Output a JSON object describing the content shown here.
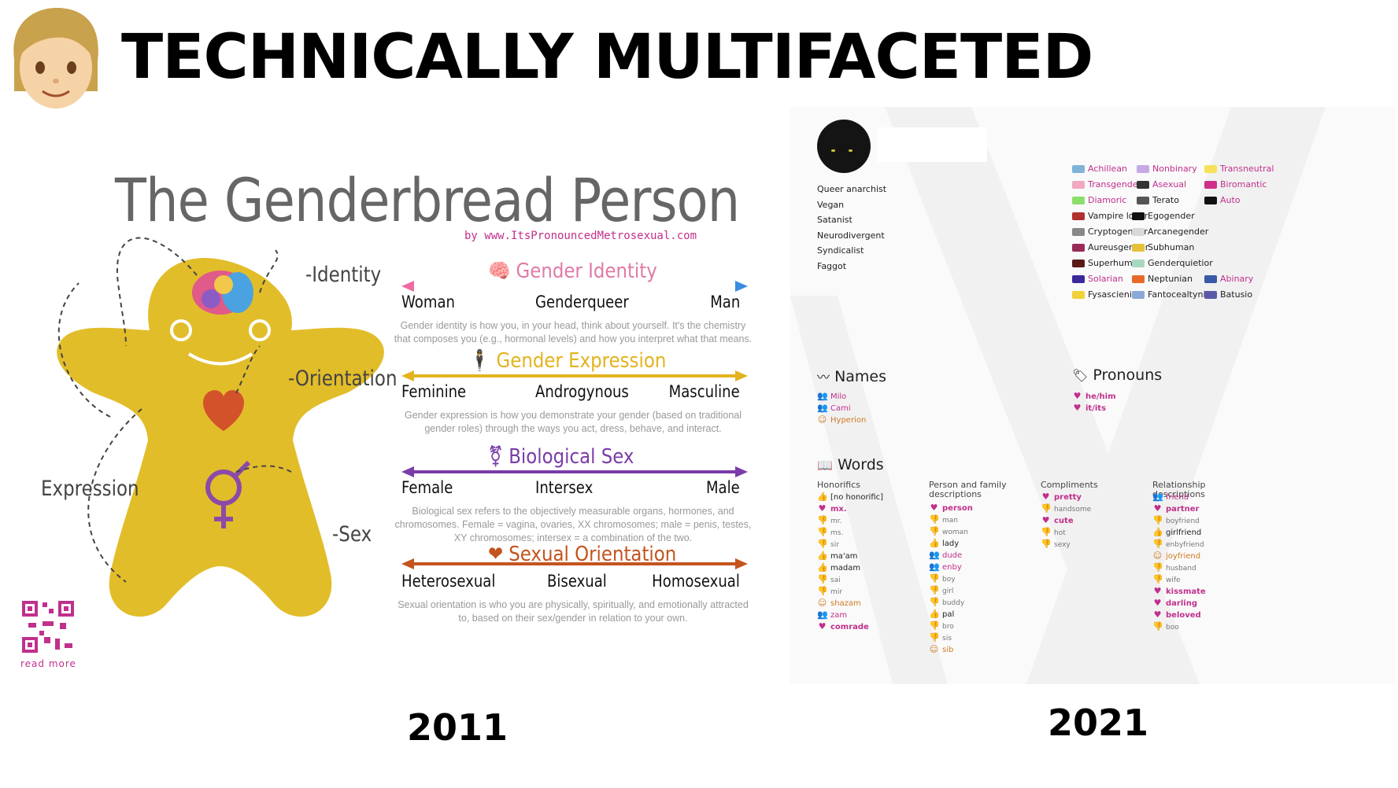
{
  "header": {
    "title": "TECHNICALLY MULTIFACETED",
    "avatar_icon": "person-emoji-icon"
  },
  "years": {
    "left": "2011",
    "right": "2021"
  },
  "genderbread": {
    "title": "The Genderbread Person",
    "byline": "by www.ItsPronouncedMetrosexual.com",
    "labels": {
      "identity": "-Identity",
      "orientation": "-Orientation",
      "expression": "Expression",
      "sex": "-Sex"
    },
    "qr_label": "read more",
    "sections": [
      {
        "title": "Gender Identity",
        "color": "#e07aa8",
        "left": "Woman",
        "middle": "Genderqueer",
        "right": "Man",
        "desc": "Gender identity is how you, in your head, think about yourself.  It's the chemistry that composes you (e.g., hormonal levels) and how you interpret what that means."
      },
      {
        "title": "Gender Expression",
        "color": "#e3b31e",
        "left": "Feminine",
        "middle": "Androgynous",
        "right": "Masculine",
        "desc": "Gender expression is how you demonstrate your gender (based on traditional gender roles) through the ways you act, dress, behave, and interact."
      },
      {
        "title": "Biological Sex",
        "color": "#7a3ca8",
        "left": "Female",
        "middle": "Intersex",
        "right": "Male",
        "desc": "Biological sex refers to the objectively measurable organs, hormones, and chromosomes. Female = vagina, ovaries, XX chromosomes; male = penis, testes, XY chromosomes; intersex = a combination of the two."
      },
      {
        "title": "Sexual Orientation",
        "color": "#c4541e",
        "left": "Heterosexual",
        "middle": "Bisexual",
        "right": "Homosexual",
        "desc": "Sexual orientation is who you are physically, spiritually, and emotionally attracted to, based on their sex/gender in relation to your own."
      }
    ]
  },
  "profile": {
    "bio": [
      "Queer anarchist",
      "Vegan",
      "Satanist",
      "Neurodivergent",
      "Syndicalist",
      "Faggot"
    ],
    "flags": [
      [
        "Achillean",
        "Nonbinary",
        "Transneutral"
      ],
      [
        "Transgender",
        "Asexual",
        "Biromantic"
      ],
      [
        "Diamoric",
        "Terato",
        "Auto"
      ],
      [
        "Vampire lover",
        "Egogender",
        ""
      ],
      [
        "Cryptogender",
        "Arcanegender",
        ""
      ],
      [
        "Aureusgender",
        "Subhuman",
        ""
      ],
      [
        "Superhuman",
        "Genderquietior",
        ""
      ],
      [
        "Solarian",
        "Neptunian",
        "Abinary"
      ],
      [
        "Fysascienic",
        "Fantocealtynian",
        "Batusio"
      ]
    ],
    "names": {
      "heading": "Names",
      "items": [
        "Milo",
        "Cami",
        "Hyperion"
      ]
    },
    "pronouns": {
      "heading": "Pronouns",
      "items": [
        "he/him",
        "it/its"
      ]
    },
    "words": {
      "heading": "Words",
      "columns": [
        {
          "title": "Honorifics",
          "items": [
            "[no honorific]",
            "mx.",
            "mr.",
            "ms.",
            "sir",
            "ma'am",
            "madam",
            "sai",
            "mir",
            "shazam",
            "zam",
            "comrade"
          ]
        },
        {
          "title": "Person and family descriptions",
          "items": [
            "person",
            "man",
            "woman",
            "lady",
            "dude",
            "enby",
            "boy",
            "girl",
            "buddy",
            "pal",
            "bro",
            "sis",
            "sib"
          ]
        },
        {
          "title": "Compliments",
          "items": [
            "pretty",
            "handsome",
            "cute",
            "hot",
            "sexy"
          ]
        },
        {
          "title": "Relationship descriptions",
          "items": [
            "friend",
            "partner",
            "boyfriend",
            "girlfriend",
            "enbyfriend",
            "joyfriend",
            "husband",
            "wife",
            "kissmate",
            "darling",
            "beloved",
            "boo"
          ]
        }
      ]
    }
  }
}
